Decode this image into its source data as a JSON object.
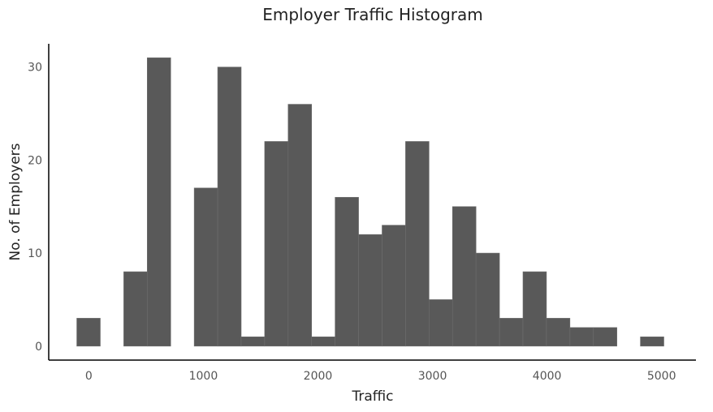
{
  "chart_data": {
    "type": "bar",
    "title": "Employer Traffic Histogram",
    "xlabel": "Traffic",
    "ylabel": "No. of Employers",
    "xlim": [
      -350,
      5300
    ],
    "ylim": [
      -1.5,
      32.5
    ],
    "x_ticks": [
      0,
      1000,
      2000,
      3000,
      4000,
      5000
    ],
    "x_tick_labels": [
      "0",
      "1000",
      "2000",
      "3000",
      "4000",
      "5000"
    ],
    "y_ticks": [
      0,
      10,
      20,
      30
    ],
    "y_tick_labels": [
      "0",
      "10",
      "20",
      "30"
    ],
    "bin_width": 205,
    "bins": [
      {
        "x0": -105,
        "x1": 100,
        "count": 3
      },
      {
        "x0": 305,
        "x1": 510,
        "count": 8
      },
      {
        "x0": 510,
        "x1": 715,
        "count": 31
      },
      {
        "x0": 920,
        "x1": 1125,
        "count": 17
      },
      {
        "x0": 1125,
        "x1": 1330,
        "count": 30
      },
      {
        "x0": 1330,
        "x1": 1535,
        "count": 1
      },
      {
        "x0": 1535,
        "x1": 1740,
        "count": 22
      },
      {
        "x0": 1740,
        "x1": 1945,
        "count": 26
      },
      {
        "x0": 1945,
        "x1": 2150,
        "count": 1
      },
      {
        "x0": 2150,
        "x1": 2355,
        "count": 16
      },
      {
        "x0": 2355,
        "x1": 2560,
        "count": 12
      },
      {
        "x0": 2560,
        "x1": 2765,
        "count": 13
      },
      {
        "x0": 2765,
        "x1": 2970,
        "count": 22
      },
      {
        "x0": 2970,
        "x1": 3175,
        "count": 5
      },
      {
        "x0": 3175,
        "x1": 3380,
        "count": 15
      },
      {
        "x0": 3380,
        "x1": 3585,
        "count": 10
      },
      {
        "x0": 3585,
        "x1": 3790,
        "count": 3
      },
      {
        "x0": 3790,
        "x1": 3995,
        "count": 8
      },
      {
        "x0": 3995,
        "x1": 4200,
        "count": 3
      },
      {
        "x0": 4200,
        "x1": 4405,
        "count": 2
      },
      {
        "x0": 4405,
        "x1": 4610,
        "count": 2
      },
      {
        "x0": 4815,
        "x1": 5020,
        "count": 1
      }
    ],
    "bar_color": "#595959",
    "grid": false,
    "legend": false
  }
}
